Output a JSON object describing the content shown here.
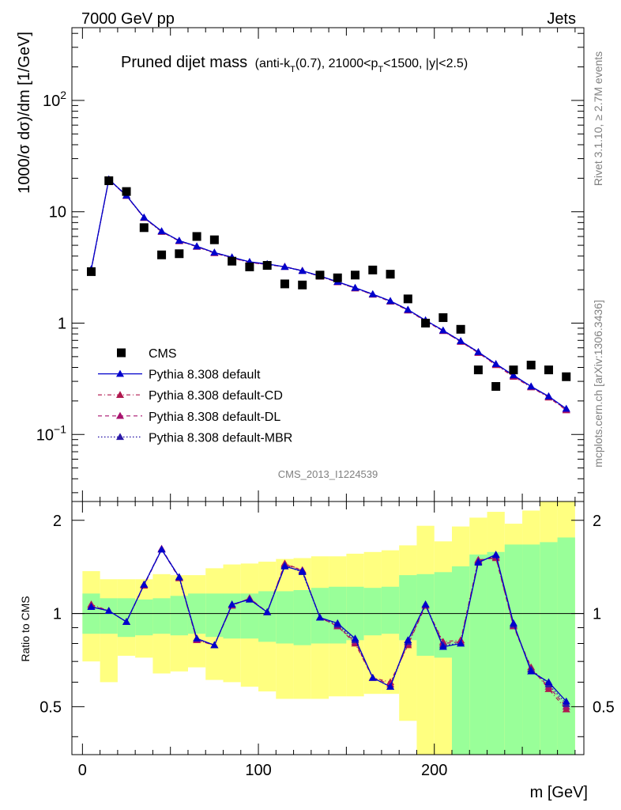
{
  "header": {
    "left": "7000 GeV pp",
    "right": "Jets"
  },
  "plot_title": {
    "main": "Pruned dijet mass",
    "sub_open": "(anti-k",
    "sub_sub1": "T",
    "sub_mid1": "(0.7), 21000<p",
    "sub_sub2": "T",
    "sub_mid2": "<1500, |y|<2.5)"
  },
  "analysis_id": "CMS_2013_I1224539",
  "side_text": {
    "rivet": "Rivet 3.1.10, ≥ 2.7M events",
    "mcplots": "mcplots.cern.ch [arXiv:1306.3436]"
  },
  "legend": {
    "entries": [
      "CMS",
      "Pythia 8.308 default",
      "Pythia 8.308 default-CD",
      "Pythia 8.308 default-DL",
      "Pythia 8.308 default-MBR"
    ]
  },
  "axes": {
    "main_ylabel": "1000/σ dσ)/dm [1/GeV]",
    "ratio_ylabel": "Ratio to CMS",
    "xlabel": "m [GeV]",
    "main_yticks": [
      {
        "value": 0.1,
        "base": "10",
        "exp": "−1"
      },
      {
        "value": 1,
        "base": "1",
        "exp": ""
      },
      {
        "value": 10,
        "base": "10",
        "exp": ""
      },
      {
        "value": 100,
        "base": "10",
        "exp": "2"
      }
    ],
    "ratio_yticks": [
      {
        "value": 0.5,
        "label": "0.5"
      },
      {
        "value": 1,
        "label": "1"
      },
      {
        "value": 2,
        "label": "2"
      }
    ],
    "xticks": [
      {
        "value": 0,
        "label": "0"
      },
      {
        "value": 100,
        "label": "100"
      },
      {
        "value": 200,
        "label": "200"
      }
    ]
  },
  "colors": {
    "cms": "#000000",
    "default": "#0000cc",
    "cd": "#b0184e",
    "dl": "#a8126e",
    "mbr": "#2c1aa8",
    "band_inner": "#99ff99",
    "band_outer": "#ffff80"
  },
  "chart_data": {
    "type": "scatter",
    "x_range": [
      -6,
      285
    ],
    "main_ylim": [
      0.025,
      450
    ],
    "main_yscale": "log",
    "ratio_ylim": [
      0.35,
      2.3
    ],
    "ratio_yscale": "log",
    "bins": [
      [
        0,
        10
      ],
      [
        10,
        20
      ],
      [
        20,
        30
      ],
      [
        30,
        40
      ],
      [
        40,
        50
      ],
      [
        50,
        60
      ],
      [
        60,
        70
      ],
      [
        70,
        80
      ],
      [
        80,
        90
      ],
      [
        90,
        100
      ],
      [
        100,
        110
      ],
      [
        110,
        120
      ],
      [
        120,
        130
      ],
      [
        130,
        140
      ],
      [
        140,
        150
      ],
      [
        150,
        160
      ],
      [
        160,
        170
      ],
      [
        170,
        180
      ],
      [
        180,
        190
      ],
      [
        190,
        200
      ],
      [
        200,
        210
      ],
      [
        210,
        220
      ],
      [
        220,
        230
      ],
      [
        230,
        240
      ],
      [
        240,
        250
      ],
      [
        250,
        260
      ],
      [
        260,
        270
      ],
      [
        270,
        280
      ]
    ],
    "x": [
      5,
      15,
      25,
      35,
      45,
      55,
      65,
      75,
      85,
      95,
      105,
      115,
      125,
      135,
      145,
      155,
      165,
      175,
      185,
      195,
      205,
      215,
      225,
      235,
      245,
      255,
      265,
      275
    ],
    "cms": [
      2.9,
      19.0,
      15.2,
      7.2,
      4.1,
      4.2,
      6.0,
      5.6,
      3.6,
      3.2,
      3.3,
      2.25,
      2.2,
      2.7,
      2.55,
      2.7,
      3.0,
      2.75,
      1.65,
      1.0,
      1.12,
      0.88,
      0.38,
      0.27,
      0.38,
      0.42,
      0.38,
      0.33
    ],
    "series": [
      {
        "name": "Pythia 8.308 default",
        "line": "solid",
        "values": [
          3.05,
          19.6,
          14.0,
          8.9,
          6.7,
          5.5,
          4.9,
          4.3,
          3.9,
          3.55,
          3.4,
          3.2,
          2.95,
          2.65,
          2.35,
          2.08,
          1.82,
          1.58,
          1.32,
          1.06,
          0.86,
          0.69,
          0.55,
          0.43,
          0.34,
          0.27,
          0.22,
          0.17
        ]
      },
      {
        "name": "Pythia 8.308 default-CD",
        "line": "dash-dot",
        "values": [
          3.0,
          19.4,
          13.9,
          8.8,
          6.6,
          5.45,
          4.85,
          4.25,
          3.85,
          3.5,
          3.35,
          3.2,
          2.95,
          2.62,
          2.33,
          2.05,
          1.8,
          1.56,
          1.3,
          1.04,
          0.85,
          0.68,
          0.54,
          0.42,
          0.33,
          0.265,
          0.215,
          0.165
        ]
      },
      {
        "name": "Pythia 8.308 default-DL",
        "line": "dashed",
        "values": [
          3.02,
          19.5,
          13.95,
          8.85,
          6.65,
          5.48,
          4.88,
          4.28,
          3.87,
          3.52,
          3.37,
          3.22,
          2.96,
          2.63,
          2.34,
          2.06,
          1.81,
          1.57,
          1.31,
          1.05,
          0.85,
          0.68,
          0.545,
          0.425,
          0.335,
          0.268,
          0.218,
          0.167
        ]
      },
      {
        "name": "Pythia 8.308 default-MBR",
        "line": "dotted",
        "values": [
          3.03,
          19.5,
          13.98,
          8.87,
          6.67,
          5.5,
          4.9,
          4.3,
          3.9,
          3.54,
          3.38,
          3.2,
          2.94,
          2.64,
          2.35,
          2.07,
          1.82,
          1.58,
          1.32,
          1.06,
          0.86,
          0.69,
          0.55,
          0.43,
          0.34,
          0.27,
          0.22,
          0.17
        ]
      }
    ],
    "ratio_series": [
      {
        "name": "Pythia 8.308 default",
        "values": [
          1.05,
          1.02,
          0.94,
          1.24,
          1.61,
          1.31,
          0.83,
          0.79,
          1.07,
          1.11,
          1.01,
          1.42,
          1.37,
          0.97,
          0.93,
          0.83,
          0.62,
          0.58,
          0.82,
          1.07,
          0.78,
          0.8,
          1.46,
          1.55,
          0.93,
          0.65,
          0.6,
          0.52
        ]
      },
      {
        "name": "Pythia 8.308 default-CD",
        "values": [
          1.07,
          1.02,
          0.94,
          1.23,
          1.61,
          1.3,
          0.82,
          0.79,
          1.06,
          1.12,
          1.01,
          1.45,
          1.38,
          0.97,
          0.91,
          0.8,
          0.62,
          0.6,
          0.79,
          1.06,
          0.81,
          0.82,
          1.49,
          1.51,
          0.91,
          0.67,
          0.57,
          0.49
        ]
      },
      {
        "name": "Pythia 8.308 default-DL",
        "values": [
          1.06,
          1.02,
          0.94,
          1.24,
          1.62,
          1.31,
          0.82,
          0.79,
          1.06,
          1.12,
          1.01,
          1.44,
          1.38,
          0.97,
          0.91,
          0.81,
          0.62,
          0.59,
          0.8,
          1.06,
          0.8,
          0.81,
          1.48,
          1.52,
          0.91,
          0.66,
          0.58,
          0.5
        ]
      },
      {
        "name": "Pythia 8.308 default-MBR",
        "values": [
          1.05,
          1.02,
          0.94,
          1.24,
          1.61,
          1.31,
          0.83,
          0.79,
          1.07,
          1.11,
          1.01,
          1.43,
          1.36,
          0.97,
          0.92,
          0.82,
          0.62,
          0.58,
          0.81,
          1.07,
          0.79,
          0.8,
          1.47,
          1.54,
          0.92,
          0.66,
          0.59,
          0.51
        ]
      }
    ],
    "band_inner": [
      [
        0.86,
        1.16
      ],
      [
        0.86,
        1.12
      ],
      [
        0.84,
        1.12
      ],
      [
        0.85,
        1.11
      ],
      [
        0.86,
        1.12
      ],
      [
        0.85,
        1.14
      ],
      [
        0.86,
        1.16
      ],
      [
        0.84,
        1.16
      ],
      [
        0.83,
        1.16
      ],
      [
        0.83,
        1.16
      ],
      [
        0.81,
        1.18
      ],
      [
        0.8,
        1.18
      ],
      [
        0.79,
        1.19
      ],
      [
        0.8,
        1.21
      ],
      [
        0.8,
        1.22
      ],
      [
        0.82,
        1.22
      ],
      [
        0.85,
        1.21
      ],
      [
        0.86,
        1.22
      ],
      [
        0.82,
        1.33
      ],
      [
        0.73,
        1.34
      ],
      [
        0.72,
        1.36
      ],
      [
        0.32,
        1.42
      ],
      [
        0.32,
        1.55
      ],
      [
        0.32,
        1.58
      ],
      [
        0.32,
        1.67
      ],
      [
        0.32,
        1.67
      ],
      [
        0.32,
        1.7
      ],
      [
        0.32,
        1.76
      ]
    ],
    "band_outer": [
      [
        0.7,
        1.37
      ],
      [
        0.6,
        1.29
      ],
      [
        0.73,
        1.29
      ],
      [
        0.72,
        1.29
      ],
      [
        0.64,
        1.34
      ],
      [
        0.65,
        1.33
      ],
      [
        0.67,
        1.33
      ],
      [
        0.61,
        1.4
      ],
      [
        0.6,
        1.44
      ],
      [
        0.58,
        1.45
      ],
      [
        0.56,
        1.47
      ],
      [
        0.53,
        1.5
      ],
      [
        0.53,
        1.51
      ],
      [
        0.53,
        1.53
      ],
      [
        0.54,
        1.53
      ],
      [
        0.54,
        1.56
      ],
      [
        0.55,
        1.58
      ],
      [
        0.55,
        1.6
      ],
      [
        0.45,
        1.66
      ],
      [
        0.32,
        1.92
      ],
      [
        0.32,
        1.71
      ],
      [
        0.32,
        1.91
      ],
      [
        0.32,
        2.04
      ],
      [
        0.32,
        2.13
      ],
      [
        0.32,
        1.95
      ],
      [
        0.32,
        2.15
      ],
      [
        0.32,
        2.4
      ],
      [
        0.32,
        2.4
      ]
    ]
  }
}
